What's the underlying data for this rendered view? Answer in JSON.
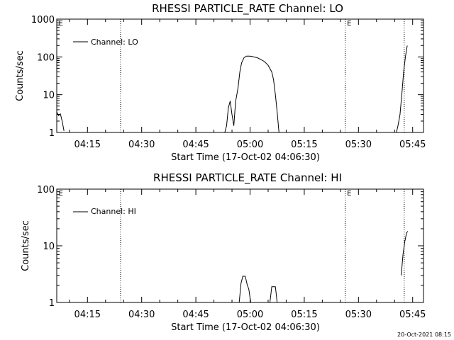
{
  "chart_data": [
    {
      "type": "line",
      "title": "RHESSI PARTICLE_RATE Channel: LO",
      "xlabel": "Start Time (17-Oct-02 04:06:30)",
      "ylabel": "Counts/sec",
      "y_scale": "log",
      "ylim": [
        1,
        1000
      ],
      "xlim": [
        "04:06:30",
        "05:48:00"
      ],
      "y_ticks": [
        "1",
        "10",
        "100",
        "1000"
      ],
      "x_ticks": [
        "04:15",
        "04:30",
        "04:45",
        "05:00",
        "05:15",
        "05:30",
        "05:45"
      ],
      "legend_position": "top-left",
      "grid": false,
      "vlines": [
        "04:24:10",
        "05:26:20",
        "05:42:40"
      ],
      "markers": [
        {
          "text": "E",
          "x": "04:07:00"
        },
        {
          "text": "E",
          "x": "05:26:50"
        }
      ],
      "series": [
        {
          "name": "Channel: LO",
          "segments": [
            [
              [
                "04:06:30",
                3.5
              ],
              [
                "04:07:00",
                2.8
              ],
              [
                "04:07:30",
                3.1
              ],
              [
                "04:08:00",
                2.0
              ],
              [
                "04:08:30",
                1.1
              ]
            ],
            [
              [
                "04:53:00",
                1.0
              ],
              [
                "04:53:30",
                1.5
              ],
              [
                "04:54:00",
                4.5
              ],
              [
                "04:54:30",
                6.8
              ],
              [
                "04:55:00",
                3.0
              ],
              [
                "04:55:30",
                1.5
              ],
              [
                "04:56:00",
                6.5
              ],
              [
                "04:56:40",
                15
              ],
              [
                "04:57:10",
                40
              ],
              [
                "04:57:40",
                70
              ],
              [
                "04:58:20",
                95
              ],
              [
                "04:59:00",
                105
              ],
              [
                "05:00:00",
                105
              ],
              [
                "05:01:00",
                100
              ],
              [
                "05:02:00",
                95
              ],
              [
                "05:03:00",
                85
              ],
              [
                "05:04:00",
                75
              ],
              [
                "05:05:00",
                60
              ],
              [
                "05:06:00",
                40
              ],
              [
                "05:06:30",
                25
              ],
              [
                "05:07:00",
                10
              ],
              [
                "05:07:30",
                3.5
              ],
              [
                "05:08:00",
                1.0
              ]
            ],
            [
              [
                "05:40:30",
                1.0
              ],
              [
                "05:41:00",
                1.6
              ],
              [
                "05:41:30",
                3.0
              ],
              [
                "05:42:00",
                10
              ],
              [
                "05:42:30",
                40
              ],
              [
                "05:43:00",
                100
              ],
              [
                "05:43:30",
                200
              ]
            ]
          ]
        }
      ]
    },
    {
      "type": "line",
      "title": "RHESSI PARTICLE_RATE Channel: HI",
      "xlabel": "Start Time (17-Oct-02 04:06:30)",
      "ylabel": "Counts/sec",
      "y_scale": "log",
      "ylim": [
        1,
        100
      ],
      "xlim": [
        "04:06:30",
        "05:48:00"
      ],
      "y_ticks": [
        "1",
        "10",
        "100"
      ],
      "x_ticks": [
        "04:15",
        "04:30",
        "04:45",
        "05:00",
        "05:15",
        "05:30",
        "05:45"
      ],
      "legend_position": "top-left",
      "grid": false,
      "vlines": [
        "04:24:10",
        "05:26:20",
        "05:42:40"
      ],
      "markers": [
        {
          "text": "E",
          "x": "04:07:00"
        },
        {
          "text": "E",
          "x": "05:26:50"
        }
      ],
      "series": [
        {
          "name": "Channel: HI",
          "segments": [
            [
              [
                "04:57:00",
                1.0
              ],
              [
                "04:57:30",
                2.2
              ],
              [
                "04:58:00",
                2.9
              ],
              [
                "04:58:40",
                2.9
              ],
              [
                "04:59:10",
                2.1
              ],
              [
                "04:59:40",
                1.7
              ],
              [
                "05:00:10",
                1.0
              ]
            ],
            [
              [
                "05:05:30",
                1.0
              ],
              [
                "05:06:00",
                1.9
              ],
              [
                "05:07:00",
                1.9
              ],
              [
                "05:07:30",
                1.0
              ]
            ],
            [
              [
                "05:41:50",
                3.0
              ],
              [
                "05:42:20",
                7.0
              ],
              [
                "05:42:50",
                12
              ],
              [
                "05:43:20",
                17
              ],
              [
                "05:43:40",
                18
              ]
            ]
          ]
        }
      ]
    }
  ],
  "footer": {
    "timestamp": "20-Oct-2021 08:15"
  }
}
